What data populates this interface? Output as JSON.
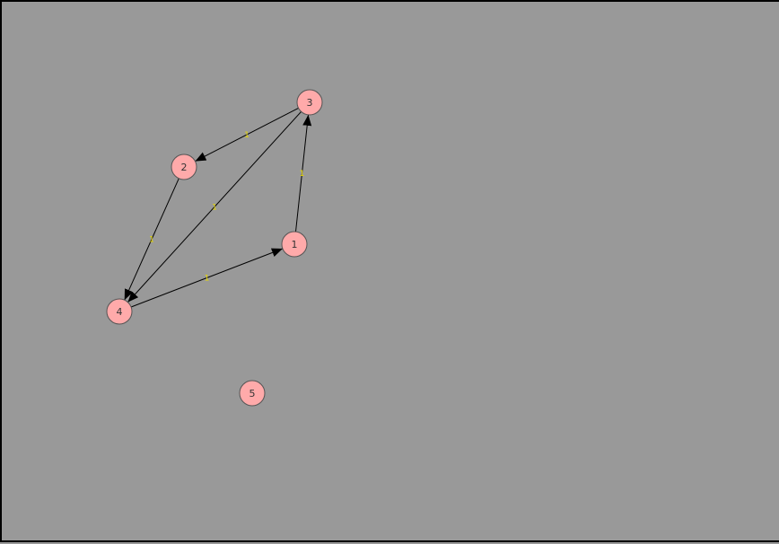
{
  "graph": {
    "background_color": "#999999",
    "node_fill": "#ffaaaa",
    "node_stroke": "#555555",
    "edge_color": "#000000",
    "edge_label_color": "#e8d800",
    "directed": true,
    "nodes": [
      {
        "id": "1",
        "label": "1"
      },
      {
        "id": "2",
        "label": "2"
      },
      {
        "id": "3",
        "label": "3"
      },
      {
        "id": "4",
        "label": "4"
      },
      {
        "id": "5",
        "label": "5"
      }
    ],
    "edges": [
      {
        "from": "3",
        "to": "2",
        "label": "1"
      },
      {
        "from": "3",
        "to": "4",
        "label": "1"
      },
      {
        "from": "1",
        "to": "3",
        "label": "1"
      },
      {
        "from": "2",
        "to": "4",
        "label": "1"
      },
      {
        "from": "4",
        "to": "1",
        "label": "1"
      }
    ]
  }
}
